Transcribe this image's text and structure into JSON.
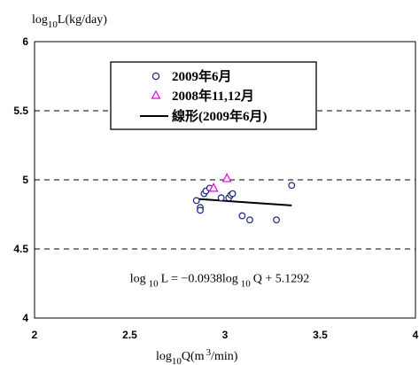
{
  "chart_data": {
    "type": "scatter",
    "ylabel": {
      "base": "log",
      "sub": "10",
      "rest": "L(kg/day)"
    },
    "xlabel": {
      "base": "log",
      "sub": "10",
      "rest": "Q(m",
      "sup": "3",
      "tail": "/min)"
    },
    "xlim": [
      2,
      4
    ],
    "ylim": [
      4,
      6
    ],
    "x_ticks": [
      "2",
      "2.5",
      "3",
      "3.5",
      "4"
    ],
    "y_ticks": [
      "4",
      "4.5",
      "5",
      "5.5",
      "6"
    ],
    "grid": "horizontal-dashed",
    "legend_position": "top-center",
    "series": [
      {
        "name": "2009年6月",
        "marker": "circle",
        "color": "#1a237e",
        "points": [
          [
            2.85,
            4.85
          ],
          [
            2.87,
            4.8
          ],
          [
            2.87,
            4.78
          ],
          [
            2.89,
            4.9
          ],
          [
            2.9,
            4.92
          ],
          [
            2.92,
            4.94
          ],
          [
            2.98,
            4.87
          ],
          [
            3.02,
            4.87
          ],
          [
            3.03,
            4.89
          ],
          [
            3.04,
            4.9
          ],
          [
            3.09,
            4.74
          ],
          [
            3.13,
            4.71
          ],
          [
            3.27,
            4.71
          ],
          [
            3.35,
            4.96
          ]
        ]
      },
      {
        "name": "2008年11,12月",
        "marker": "triangle",
        "color": "#e600e6",
        "points": [
          [
            2.94,
            4.94
          ],
          [
            3.01,
            5.01
          ]
        ]
      },
      {
        "name": "線形(2009年6月)",
        "marker": "line",
        "color": "#000000",
        "line": [
          [
            2.85,
            4.862
          ],
          [
            3.35,
            4.815
          ]
        ]
      }
    ],
    "annotation": {
      "log_a": "log",
      "sub_a": "10",
      "lhs": "L  =  −0.0938log",
      "sub_b": "10",
      "rhs": "Q  +  5.1292",
      "x": 3.0,
      "y": 4.26
    }
  }
}
